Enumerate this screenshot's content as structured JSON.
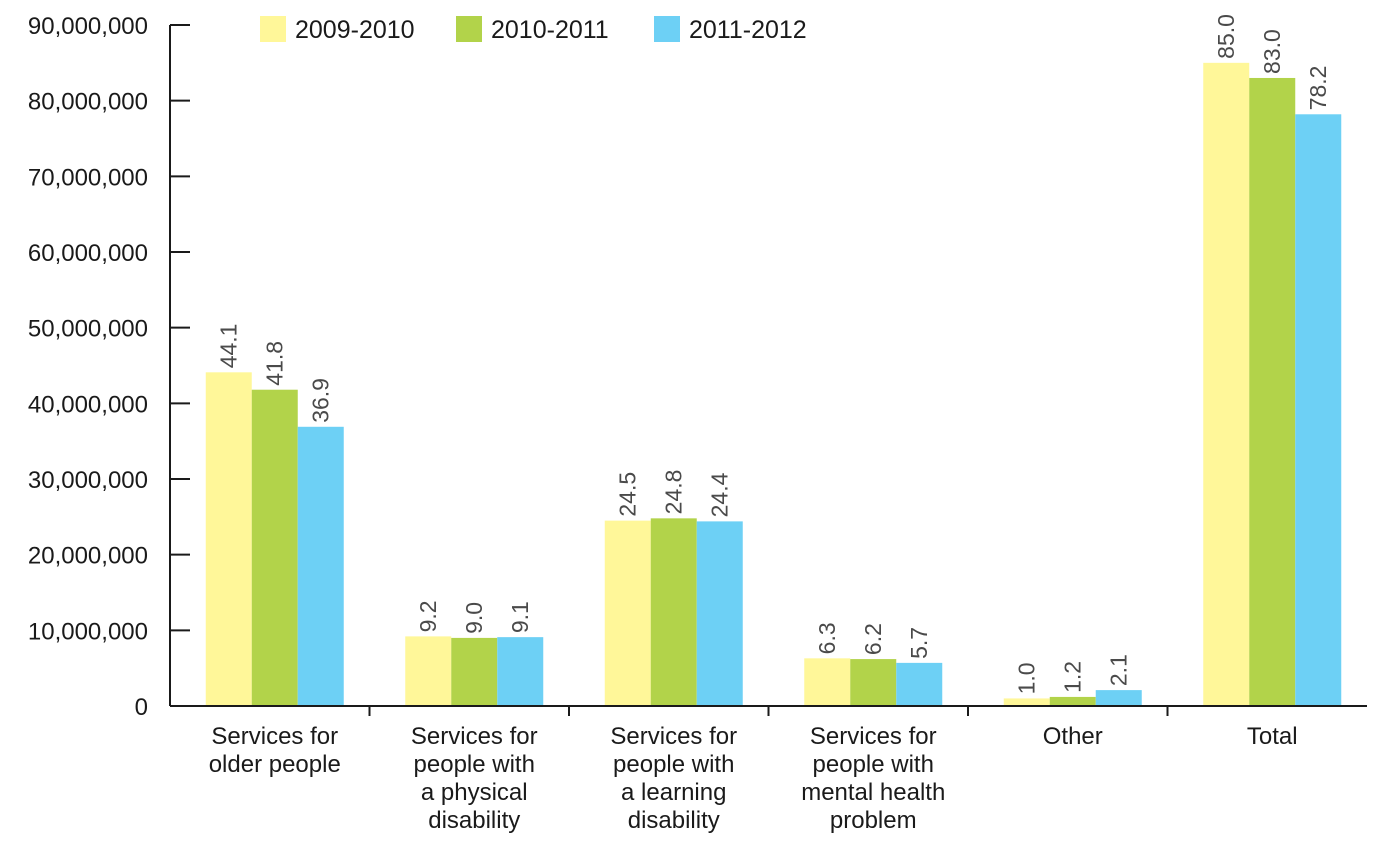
{
  "chart_data": {
    "type": "bar",
    "title": "",
    "xlabel": "",
    "ylabel": "",
    "categories": [
      [
        "Services for",
        "older people"
      ],
      [
        "Services for",
        "people with",
        "a physical",
        "disability"
      ],
      [
        "Services for",
        "people with",
        "a learning",
        "disability"
      ],
      [
        "Services for",
        "people with",
        "mental health",
        "problem"
      ],
      [
        "Other"
      ],
      [
        "Total"
      ]
    ],
    "series": [
      {
        "name": "2009-2010",
        "color": "#fff799",
        "values": [
          44100000,
          9200000,
          24500000,
          6300000,
          1000000,
          85000000
        ],
        "labels": [
          "44.1",
          "9.2",
          "24.5",
          "6.3",
          "1.0",
          "85.0"
        ]
      },
      {
        "name": "2010-2011",
        "color": "#b2d34a",
        "values": [
          41800000,
          9000000,
          24800000,
          6200000,
          1200000,
          83000000
        ],
        "labels": [
          "41.8",
          "9.0",
          "24.8",
          "6.2",
          "1.2",
          "83.0"
        ]
      },
      {
        "name": "2011-2012",
        "color": "#6dd0f5",
        "values": [
          36900000,
          9100000,
          24400000,
          5700000,
          2100000,
          78200000
        ],
        "labels": [
          "36.9",
          "9.1",
          "24.4",
          "5.7",
          "2.1",
          "78.2"
        ]
      }
    ],
    "ylim": [
      0,
      90000000
    ],
    "yticks": [
      0,
      10000000,
      20000000,
      30000000,
      40000000,
      50000000,
      60000000,
      70000000,
      80000000,
      90000000
    ],
    "ytick_labels": [
      "0",
      "10,000,000",
      "20,000,000",
      "30,000,000",
      "40,000,000",
      "50,000,000",
      "60,000,000",
      "70,000,000",
      "80,000,000",
      "90,000,000"
    ],
    "grid": false,
    "legend_position": "top"
  }
}
